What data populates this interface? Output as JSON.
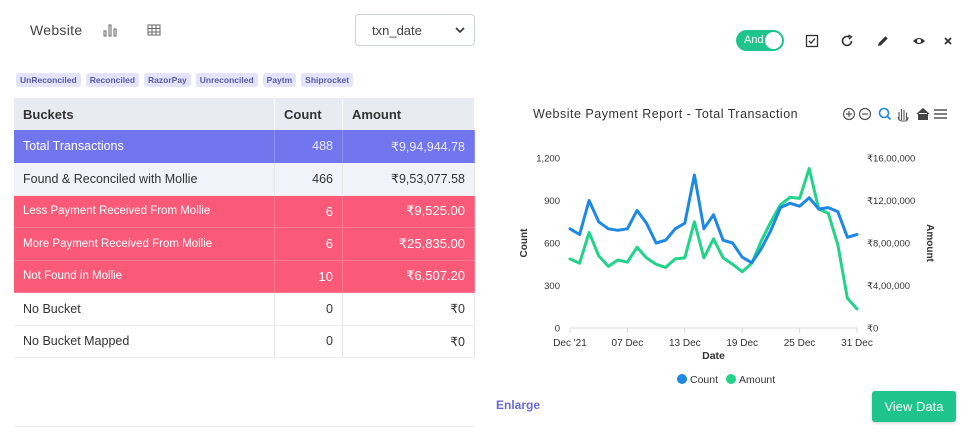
{
  "header": {
    "title": "Website",
    "select_value": "txn_date",
    "toggle_label": "And"
  },
  "tags": [
    "UnReconciled",
    "Reconciled",
    "RazorPay",
    "Unreconciled",
    "Paytm",
    "Shiprocket"
  ],
  "table": {
    "headers": [
      "Buckets",
      "Count",
      "Amount"
    ],
    "rows": [
      {
        "label": "Total Transactions",
        "count": "488",
        "amount": "₹9,94,944.78",
        "style": "total"
      },
      {
        "label": "Found & Reconciled with Mollie",
        "count": "466",
        "amount": "₹9,53,077.58",
        "style": "found"
      },
      {
        "label": "Less Payment Received From Mollie",
        "count": "6",
        "amount": "₹9,525.00",
        "style": "red"
      },
      {
        "label": "More Payment Received From Mollie",
        "count": "6",
        "amount": "₹25,835.00",
        "style": "red"
      },
      {
        "label": "Not Found in Mollie",
        "count": "10",
        "amount": "₹6,507.20",
        "style": "red"
      },
      {
        "label": "No Bucket",
        "count": "0",
        "amount": "₹0",
        "style": "plain"
      },
      {
        "label": "No Bucket Mapped",
        "count": "0",
        "amount": "₹0",
        "style": "plain"
      }
    ]
  },
  "actions": {
    "enlarge": "Enlarge",
    "view_data": "View Data"
  },
  "colors": {
    "accent": "#1ec48c",
    "count_line": "#1e88e5",
    "amount_line": "#22d38a",
    "total_row": "#7176ee",
    "alert_row": "#fa5a78"
  },
  "chart_data": {
    "type": "line",
    "title": "Website Payment Report - Total Transaction",
    "xlabel": "Date",
    "ylabel": "Count",
    "y2label": "Amount",
    "x_range": [
      "2021-12-01",
      "2021-12-31"
    ],
    "x_ticks": [
      "Dec '21",
      "07 Dec",
      "13 Dec",
      "19 Dec",
      "25 Dec",
      "31 Dec"
    ],
    "ylim": [
      0,
      1200
    ],
    "y_ticks": [
      "0",
      "300",
      "600",
      "900",
      "1,200"
    ],
    "y2lim": [
      0,
      1600000
    ],
    "y2_ticks": [
      "₹0",
      "₹4,00,000",
      "₹8,00,000",
      "₹12,00,000",
      "₹16,00,000"
    ],
    "legend": "bottom",
    "series": [
      {
        "name": "Count",
        "axis": "left",
        "color": "#1e88e5",
        "x": [
          "2021-12-01",
          "2021-12-02",
          "2021-12-03",
          "2021-12-04",
          "2021-12-05",
          "2021-12-06",
          "2021-12-07",
          "2021-12-08",
          "2021-12-09",
          "2021-12-10",
          "2021-12-11",
          "2021-12-12",
          "2021-12-13",
          "2021-12-14",
          "2021-12-15",
          "2021-12-16",
          "2021-12-17",
          "2021-12-18",
          "2021-12-19",
          "2021-12-20",
          "2021-12-21",
          "2021-12-22",
          "2021-12-23",
          "2021-12-24",
          "2021-12-25",
          "2021-12-26",
          "2021-12-27",
          "2021-12-28",
          "2021-12-29",
          "2021-12-30",
          "2021-12-31"
        ],
        "values": [
          700,
          660,
          900,
          750,
          700,
          690,
          700,
          830,
          740,
          600,
          620,
          700,
          740,
          1080,
          700,
          800,
          620,
          600,
          500,
          460,
          560,
          690,
          850,
          880,
          860,
          920,
          840,
          850,
          820,
          640,
          660
        ]
      },
      {
        "name": "Amount",
        "axis": "right",
        "color": "#22d38a",
        "x": [
          "2021-12-01",
          "2021-12-02",
          "2021-12-03",
          "2021-12-04",
          "2021-12-05",
          "2021-12-06",
          "2021-12-07",
          "2021-12-08",
          "2021-12-09",
          "2021-12-10",
          "2021-12-11",
          "2021-12-12",
          "2021-12-13",
          "2021-12-14",
          "2021-12-15",
          "2021-12-16",
          "2021-12-17",
          "2021-12-18",
          "2021-12-19",
          "2021-12-20",
          "2021-12-21",
          "2021-12-22",
          "2021-12-23",
          "2021-12-24",
          "2021-12-25",
          "2021-12-26",
          "2021-12-27",
          "2021-12-28",
          "2021-12-29",
          "2021-12-30",
          "2021-12-31"
        ],
        "values": [
          650000,
          610000,
          900000,
          680000,
          580000,
          640000,
          620000,
          760000,
          660000,
          600000,
          570000,
          650000,
          660000,
          1000000,
          660000,
          840000,
          660000,
          600000,
          530000,
          610000,
          820000,
          1000000,
          1160000,
          1230000,
          1220000,
          1500000,
          1120000,
          1080000,
          780000,
          280000,
          180000
        ]
      }
    ]
  }
}
